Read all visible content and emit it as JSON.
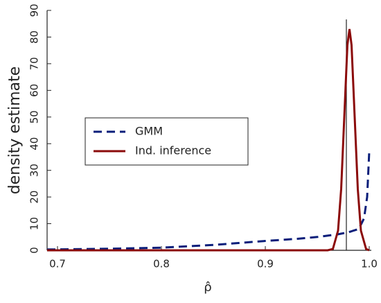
{
  "chart_data": {
    "type": "line",
    "x_label": "ρ̂",
    "y_label": "density estimate",
    "xlim": [
      0.69,
      1.0
    ],
    "ylim": [
      0,
      90
    ],
    "xticks": [
      0.7,
      0.8,
      0.9,
      {
        "value": 1,
        "label": "1.0"
      }
    ],
    "yticks": [
      0,
      10,
      20,
      30,
      40,
      50,
      60,
      70,
      80,
      90
    ],
    "reference_x": 0.978,
    "legend": "center left",
    "series": [
      {
        "name": "GMM",
        "color": "#0a1e7a",
        "dash": true,
        "x": [
          0.69,
          0.7,
          0.75,
          0.8,
          0.85,
          0.9,
          0.93,
          0.95,
          0.97,
          0.98,
          0.99,
          0.995,
          0.998,
          1.0
        ],
        "values": [
          0.3,
          0.35,
          0.6,
          1,
          2,
          3.5,
          4.3,
          5,
          6,
          6.8,
          8,
          12,
          20,
          37
        ]
      },
      {
        "name": "Ind. inference",
        "color": "#8b0a0a",
        "dash": false,
        "x": [
          0.69,
          0.95,
          0.96,
          0.965,
          0.97,
          0.973,
          0.976,
          0.979,
          0.981,
          0.983,
          0.986,
          0.989,
          0.992,
          0.997,
          1.0
        ],
        "values": [
          0,
          0,
          0.01,
          0.5,
          7.4,
          23,
          50,
          77,
          83,
          77,
          50,
          23,
          7.4,
          0.5,
          0
        ]
      }
    ]
  }
}
